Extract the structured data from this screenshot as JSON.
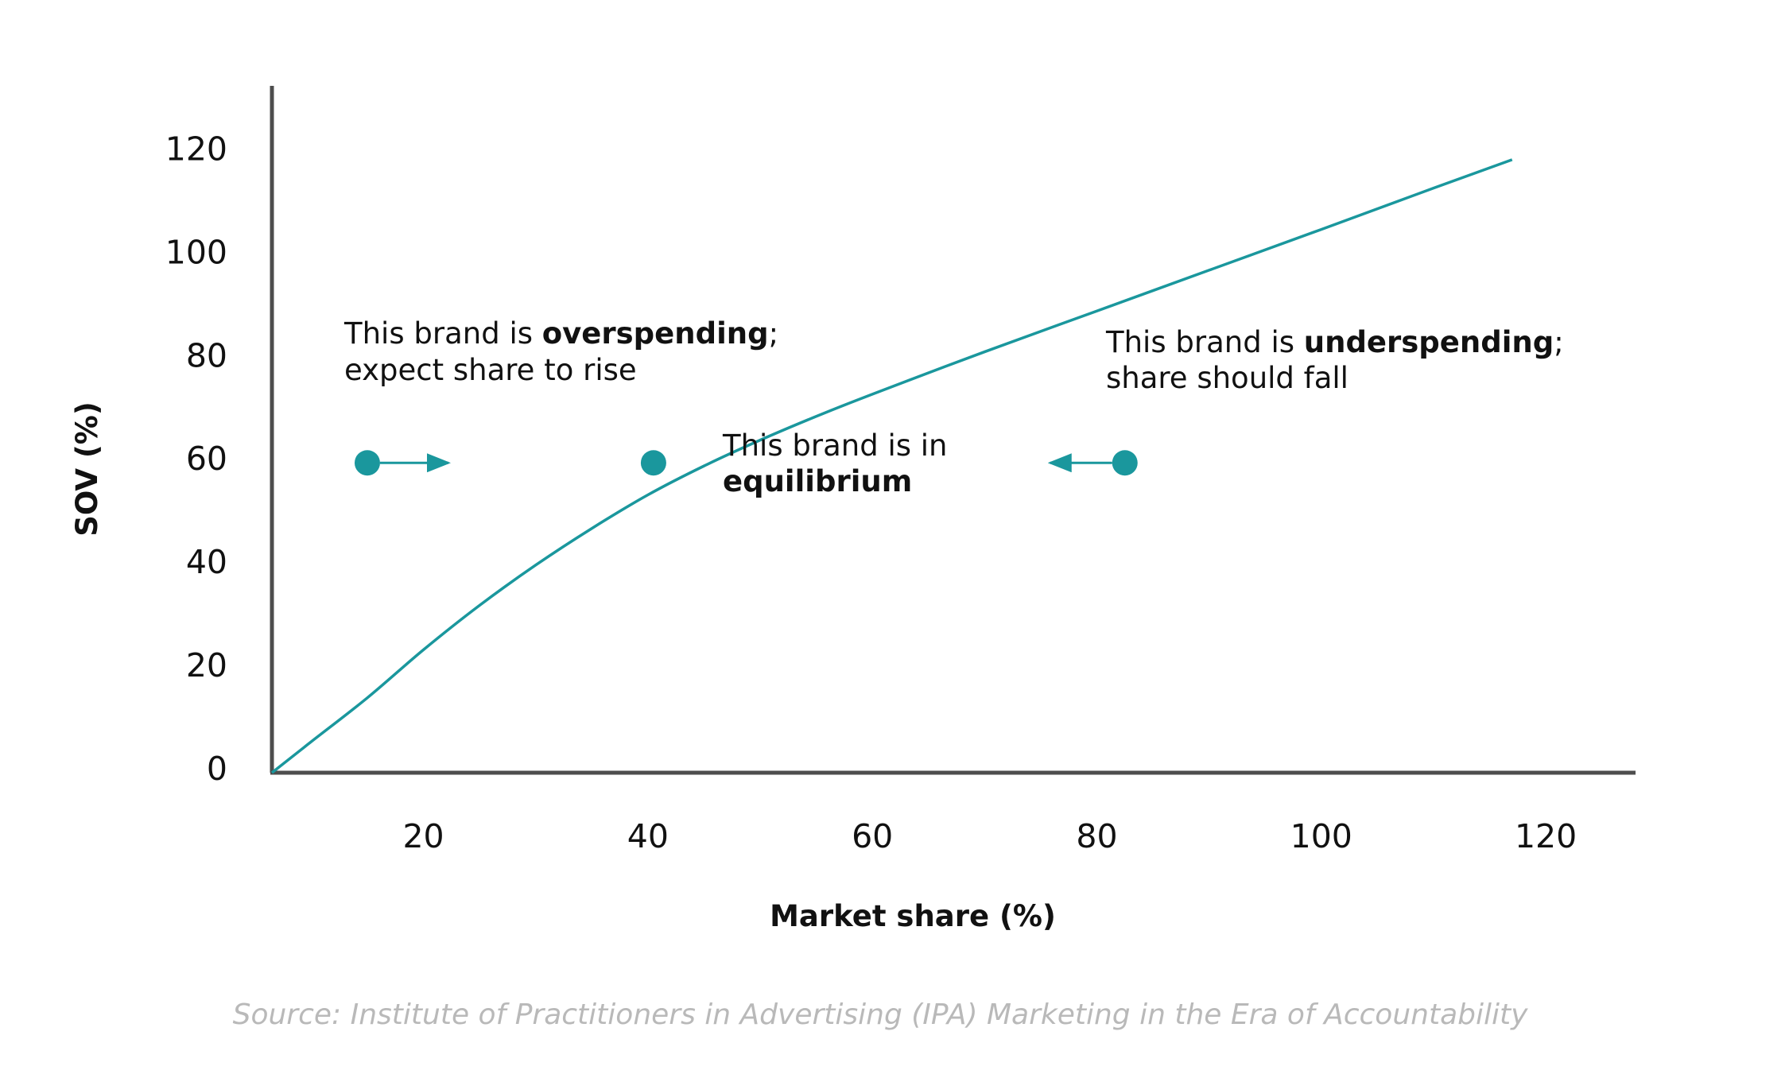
{
  "chart_data": {
    "type": "line",
    "title": "",
    "xlabel": "Market share (%)",
    "ylabel": "SOV (%)",
    "xlim": [
      6.5,
      128
    ],
    "ylim": [
      0,
      133
    ],
    "x_ticks": [
      20,
      40,
      60,
      80,
      100,
      120
    ],
    "y_ticks": [
      0,
      20,
      40,
      60,
      80,
      100,
      120
    ],
    "grid": false,
    "series": [
      {
        "color": "#1a979d",
        "x": [
          6.5,
          10,
          15,
          20,
          25,
          30,
          35,
          40,
          45,
          50,
          55,
          60,
          70,
          80,
          90,
          100,
          110,
          117
        ],
        "y": [
          0,
          6,
          14.5,
          23.8,
          32.4,
          40.2,
          47.3,
          53.8,
          59.4,
          64.4,
          69,
          73.3,
          81.5,
          89.4,
          97.3,
          105.2,
          113.2,
          118.7
        ]
      }
    ],
    "points": [
      {
        "x": 15,
        "y": 60,
        "arrow": "right"
      },
      {
        "x": 40.5,
        "y": 60,
        "arrow": "none"
      },
      {
        "x": 82.5,
        "y": 60,
        "arrow": "left"
      }
    ],
    "annotations": [
      {
        "id": "overspending",
        "line1_before": "This brand is ",
        "line1_bold": "overspending",
        "line1_after": ";",
        "line2": "expect share to rise"
      },
      {
        "id": "equilibrium",
        "line1": "This brand is in",
        "line2_bold": "equilibrium"
      },
      {
        "id": "underspending",
        "line1_before": "This brand is ",
        "line1_bold": "underspending",
        "line1_after": ";",
        "line2": "share should fall"
      }
    ],
    "source": "Source: Institute of Practitioners in Advertising (IPA) Marketing in the Era of Accountability",
    "colors": {
      "accent": "#1a979d",
      "axis": "#4d4d4d",
      "text": "#111111",
      "source": "#b9b9b9"
    }
  }
}
